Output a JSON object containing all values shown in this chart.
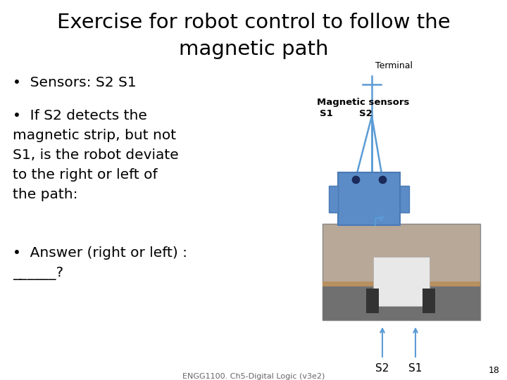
{
  "title_line1": "Exercise for robot control to follow the",
  "title_line2": "magnetic path",
  "title_fontsize": 21,
  "bullet_points": [
    "Sensors: S2 S1",
    "If S2 detects the\nmagnetic strip, but not\nS1, is the robot deviate\nto the right or left of\nthe path:",
    "Answer (right or left) :\n______?"
  ],
  "bullet_fontsize": 14.5,
  "bg_color": "#ffffff",
  "text_color": "#000000",
  "robot_body_color": "#5b8cc8",
  "line_color": "#5b9bd5",
  "terminal_label": "Terminal",
  "magnetic_label": "Magnetic sensors",
  "s1_label": "S1",
  "s2_label": "S2",
  "s2_bottom_label": "S2",
  "s1_bottom_label": "S1",
  "footer_text": "ENGG1100. Ch5-Digital Logic (v3e2)",
  "page_number": "18"
}
